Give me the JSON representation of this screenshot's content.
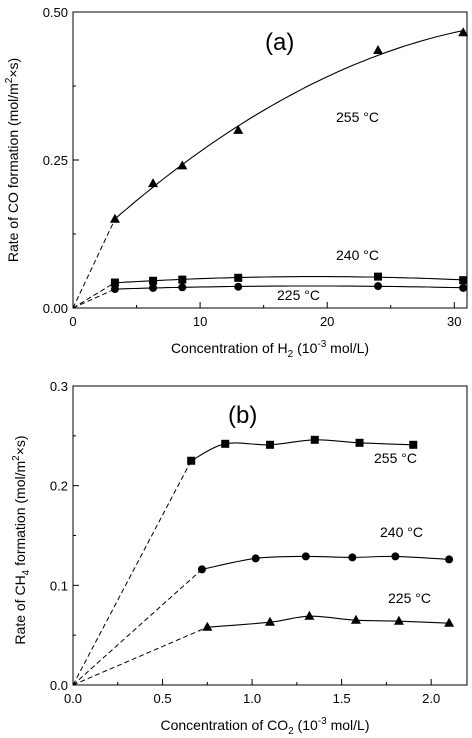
{
  "chart_data": [
    {
      "type": "line",
      "panel_label": "(a)",
      "xlabel_pre": "Concentration of H",
      "xlabel_sub": "2",
      "xlabel_post": " (10",
      "xlabel_sup": "-3",
      "xlabel_end": " mol/L)",
      "ylabel_pre": "Rate of CO formation (mol/m",
      "ylabel_sup": "2",
      "ylabel_post": "×s)",
      "xlim": [
        0,
        31
      ],
      "ylim": [
        0,
        0.5
      ],
      "xticks": [
        0,
        10,
        20,
        30
      ],
      "xtick_labels": [
        "0",
        "10",
        "20",
        "30"
      ],
      "yticks": [
        0,
        0.25,
        0.5
      ],
      "ytick_labels": [
        "0.00",
        "0.25",
        "0.50"
      ],
      "grid": false,
      "series": [
        {
          "name": "255 °C",
          "marker": "triangle",
          "x": [
            3.3,
            6.3,
            8.6,
            13.0,
            24.0,
            30.7
          ],
          "y": [
            0.15,
            0.21,
            0.24,
            0.3,
            0.435,
            0.465
          ]
        },
        {
          "name": "240 °C",
          "marker": "square",
          "x": [
            3.3,
            6.3,
            8.6,
            13.0,
            24.0,
            30.7
          ],
          "y": [
            0.043,
            0.046,
            0.048,
            0.051,
            0.053,
            0.047
          ]
        },
        {
          "name": "225 °C",
          "marker": "circle",
          "x": [
            3.3,
            6.3,
            8.6,
            13.0,
            24.0,
            30.7
          ],
          "y": [
            0.032,
            0.034,
            0.035,
            0.036,
            0.037,
            0.034
          ]
        }
      ]
    },
    {
      "type": "line",
      "panel_label": "(b)",
      "xlabel_pre": "Concentration of CO",
      "xlabel_sub": "2",
      "xlabel_post": " (10",
      "xlabel_sup": "-3",
      "xlabel_end": " mol/L)",
      "ylabel_pre": "Rate of CH",
      "ylabel_sub": "4",
      "ylabel_mid": " formation (mol/m",
      "ylabel_sup": "2",
      "ylabel_post": "×s)",
      "xlim": [
        0,
        2.2
      ],
      "ylim": [
        0,
        0.3
      ],
      "xticks": [
        0,
        0.5,
        1.0,
        1.5,
        2.0
      ],
      "xtick_labels": [
        "0.0",
        "0.5",
        "1.0",
        "1.5",
        "2.0"
      ],
      "yticks": [
        0,
        0.1,
        0.2,
        0.3
      ],
      "ytick_labels": [
        "0.0",
        "0.1",
        "0.2",
        "0.3"
      ],
      "grid": false,
      "series": [
        {
          "name": "255 °C",
          "marker": "square",
          "x": [
            0.66,
            0.85,
            1.1,
            1.35,
            1.6,
            1.9
          ],
          "y": [
            0.225,
            0.242,
            0.241,
            0.246,
            0.243,
            0.241
          ]
        },
        {
          "name": "240 °C",
          "marker": "circle",
          "x": [
            0.72,
            1.02,
            1.3,
            1.56,
            1.8,
            2.1
          ],
          "y": [
            0.116,
            0.127,
            0.129,
            0.128,
            0.129,
            0.126
          ]
        },
        {
          "name": "225 °C",
          "marker": "triangle",
          "x": [
            0.75,
            1.1,
            1.32,
            1.58,
            1.82,
            2.1
          ],
          "y": [
            0.058,
            0.063,
            0.069,
            0.065,
            0.064,
            0.062
          ]
        }
      ]
    }
  ]
}
